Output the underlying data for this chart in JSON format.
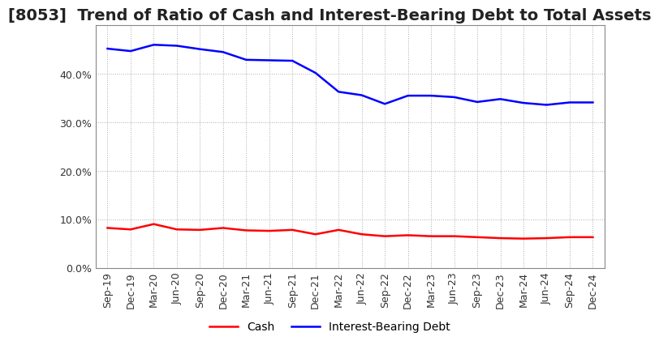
{
  "title": "[8053]  Trend of Ratio of Cash and Interest-Bearing Debt to Total Assets",
  "x_labels": [
    "Sep-19",
    "Dec-19",
    "Mar-20",
    "Jun-20",
    "Sep-20",
    "Dec-20",
    "Mar-21",
    "Jun-21",
    "Sep-21",
    "Dec-21",
    "Mar-22",
    "Jun-22",
    "Sep-22",
    "Dec-22",
    "Mar-23",
    "Jun-23",
    "Sep-23",
    "Dec-23",
    "Mar-24",
    "Jun-24",
    "Sep-24",
    "Dec-24"
  ],
  "cash": [
    0.082,
    0.079,
    0.09,
    0.079,
    0.078,
    0.082,
    0.077,
    0.076,
    0.078,
    0.069,
    0.078,
    0.069,
    0.065,
    0.067,
    0.065,
    0.065,
    0.063,
    0.061,
    0.06,
    0.061,
    0.063,
    0.063
  ],
  "interest_bearing_debt": [
    0.452,
    0.447,
    0.46,
    0.458,
    0.451,
    0.445,
    0.429,
    0.428,
    0.427,
    0.402,
    0.363,
    0.356,
    0.338,
    0.355,
    0.355,
    0.352,
    0.342,
    0.348,
    0.34,
    0.336,
    0.341,
    0.341
  ],
  "cash_color": "#FF0000",
  "debt_color": "#0000FF",
  "background_color": "#FFFFFF",
  "plot_bg_color": "#FFFFFF",
  "grid_color": "#999999",
  "ylim": [
    0.0,
    0.5
  ],
  "yticks": [
    0.0,
    0.1,
    0.2,
    0.3,
    0.4
  ],
  "legend_labels": [
    "Cash",
    "Interest-Bearing Debt"
  ],
  "title_fontsize": 14,
  "tick_fontsize": 9,
  "legend_fontsize": 10,
  "line_width": 1.8
}
